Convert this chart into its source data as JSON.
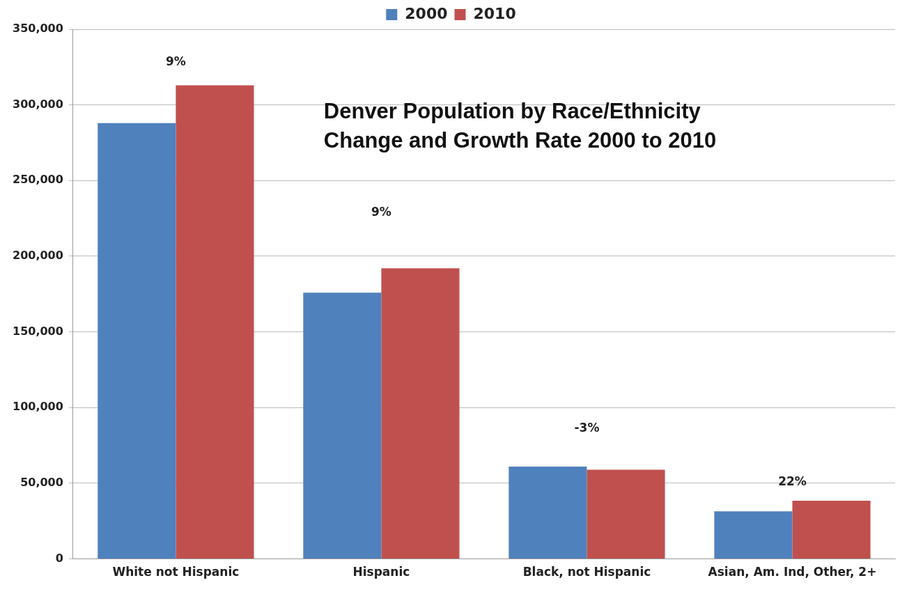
{
  "chart_data": {
    "type": "bar",
    "title": "Denver Population by Race/Ethnicity",
    "subtitle": "Change and Growth Rate 2000 to 2010",
    "categories": [
      "White not Hispanic",
      "Hispanic",
      "Black, not Hispanic",
      "Asian, Am. Ind, Other, 2+"
    ],
    "series": [
      {
        "name": "2000",
        "color": "#4f81bd",
        "values": [
          288000,
          176000,
          61000,
          31500
        ]
      },
      {
        "name": "2010",
        "color": "#c0504d",
        "values": [
          313000,
          192000,
          59000,
          38500
        ]
      }
    ],
    "annotations": [
      "9%",
      "9%",
      "-3%",
      "22%"
    ],
    "ylim": [
      0,
      350000
    ],
    "yticks": [
      0,
      {
        "value": 50000,
        "label": "50,000"
      },
      {
        "value": 100000,
        "label": "100,000"
      },
      {
        "value": 150000,
        "label": "150,000"
      },
      {
        "value": 200000,
        "label": "200,000"
      },
      {
        "value": 250000,
        "label": "250,000"
      },
      {
        "value": 300000,
        "label": "300,000"
      },
      {
        "value": 350000,
        "label": "350,000"
      }
    ],
    "grid": "y",
    "legend": "top"
  }
}
